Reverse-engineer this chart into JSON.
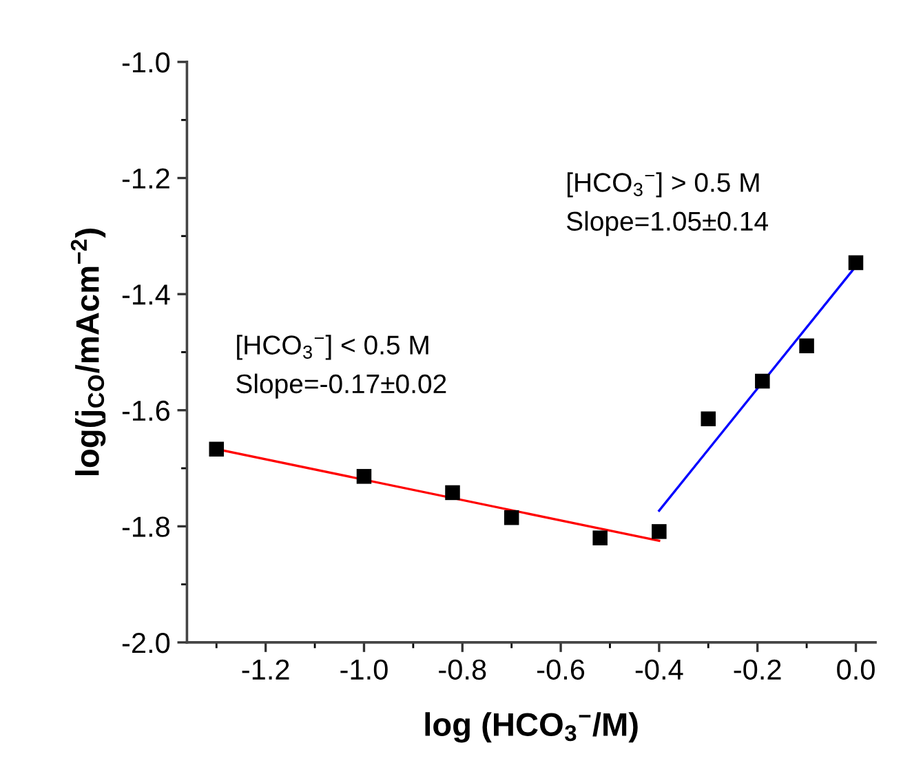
{
  "chart_data": {
    "type": "scatter",
    "xlabel": "log (HCO$_{3}$$^{−}$/M)",
    "ylabel": "log(j$_{CO}$/mAcm$^{−2}$)",
    "series": [
      {
        "type": "scatter",
        "color": "#000000",
        "marker": "square",
        "x": [
          -1.3,
          -1.0,
          -0.82,
          -0.7,
          -0.52,
          -0.4,
          -0.3,
          -0.19,
          -0.1,
          0.0
        ],
        "values": [
          -1.667,
          -1.714,
          -1.742,
          -1.785,
          -1.82,
          -1.809,
          -1.615,
          -1.55,
          -1.489,
          -1.346
        ]
      },
      {
        "type": "line",
        "color": "#ff0000",
        "x": [
          -1.3,
          -0.4
        ],
        "values": [
          -1.667,
          -1.825
        ]
      },
      {
        "type": "line",
        "color": "#0000ff",
        "x": [
          -0.4,
          0.0
        ],
        "values": [
          -1.773,
          -1.352
        ]
      }
    ],
    "annotations": [
      "[HCO$_{3}$$^{−}$] < 0.5 M\nSlope=-0.17±0.02",
      "[HCO$_{3}$$^{−}$] > 0.5 M\nSlope=1.05±0.14"
    ],
    "xlim": [
      -1.36,
      0.04
    ],
    "ylim": [
      -2.0,
      -1.0
    ],
    "xticks": [
      -1.2,
      {
        "value": -1.0,
        "label": "-1.0"
      },
      -0.8,
      -0.6,
      -0.4,
      -0.2,
      {
        "value": 0,
        "label": "0.0"
      }
    ],
    "yticks": [
      {
        "value": -2,
        "label": "-2.0"
      },
      -1.8,
      -1.6,
      -1.4,
      -1.2,
      {
        "value": -1,
        "label": "-1.0"
      }
    ],
    "grid": false,
    "legend": false
  }
}
